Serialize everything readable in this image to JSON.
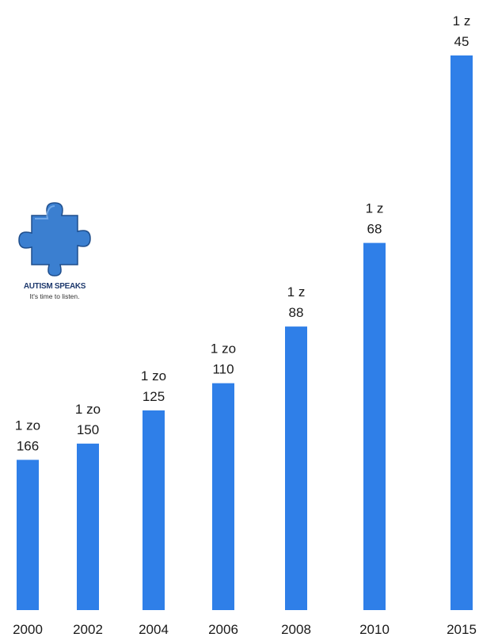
{
  "logo": {
    "name": "AUTISM SPEAKS",
    "tagline": "It's time to listen."
  },
  "colors": {
    "bar": "#2f7fe8",
    "logo_blue": "#3b7fd0"
  },
  "chart_data": {
    "type": "bar",
    "title": "",
    "xlabel": "",
    "ylabel": "",
    "grid": false,
    "categories": [
      "2000",
      "2002",
      "2004",
      "2006",
      "2008",
      "2010",
      "2015"
    ],
    "values": [
      0.00602,
      0.00667,
      0.008,
      0.00909,
      0.01136,
      0.01471,
      0.02222
    ],
    "labels": [
      [
        "1 zo",
        "166"
      ],
      [
        "1 zo",
        "150"
      ],
      [
        "1 zo",
        "125"
      ],
      [
        "1 zo",
        "110"
      ],
      [
        "1 z",
        "88"
      ],
      [
        "1 z",
        "68"
      ],
      [
        "1 z",
        "45"
      ]
    ]
  }
}
